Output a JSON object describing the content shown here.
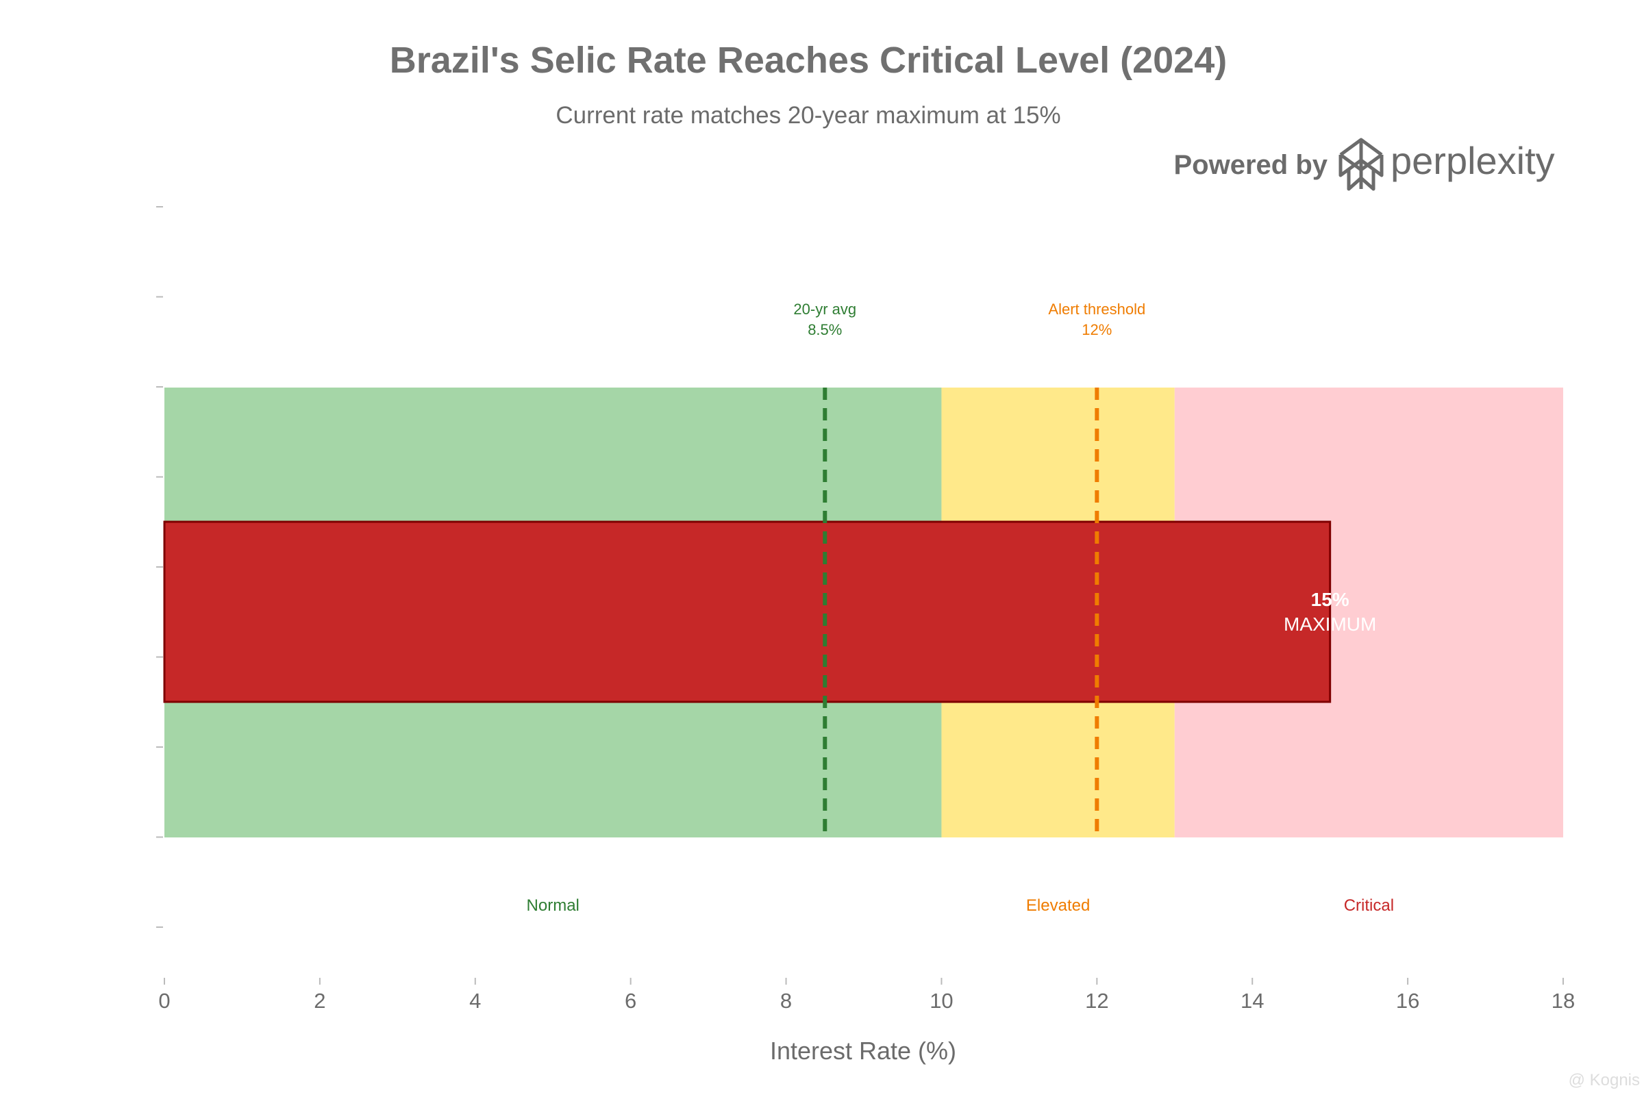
{
  "chart_data": {
    "type": "bar",
    "title": "Brazil's Selic Rate Reaches Critical Level (2024)",
    "subtitle": "Current rate matches 20-year maximum at 15%",
    "xlabel": "Interest Rate (%)",
    "ylabel": "",
    "xlim": [
      0,
      18
    ],
    "x_ticks": [
      0,
      2,
      4,
      6,
      8,
      10,
      12,
      14,
      16,
      18
    ],
    "x_tick_labels": [
      "0",
      "2",
      "4",
      "6",
      "8",
      "10",
      "12",
      "14",
      "16",
      "18"
    ],
    "orientation": "horizontal",
    "grid": false,
    "bars": [
      {
        "value": 15,
        "label_value": "15%",
        "label_text": "MAXIMUM",
        "color": "#C62828"
      }
    ],
    "zones": [
      {
        "label": "Normal",
        "from": 0,
        "to": 10,
        "color": "#A5D6A7",
        "label_color": "#2E7D32"
      },
      {
        "label": "Elevated",
        "from": 10,
        "to": 13,
        "color": "#FFE98A",
        "label_color": "#EF7C00"
      },
      {
        "label": "Critical",
        "from": 13,
        "to": 18,
        "color": "#FFCDD2",
        "label_color": "#C62828"
      }
    ],
    "reference_lines": [
      {
        "label": "20-yr avg",
        "value_label": "8.5%",
        "value": 8.5,
        "color": "#2E7D32"
      },
      {
        "label": "Alert threshold",
        "value_label": "12%",
        "value": 12,
        "color": "#EF7C00"
      }
    ]
  },
  "branding": {
    "powered_by": "Powered by",
    "brand": "perplexity",
    "watermark": "@ Kognis"
  },
  "colors": {
    "title": "#707070",
    "axis_text": "#6b6b6b",
    "tick": "#bbbbbb",
    "bar_edge": "#7f0000",
    "label_on_bar": "#ffffff"
  }
}
